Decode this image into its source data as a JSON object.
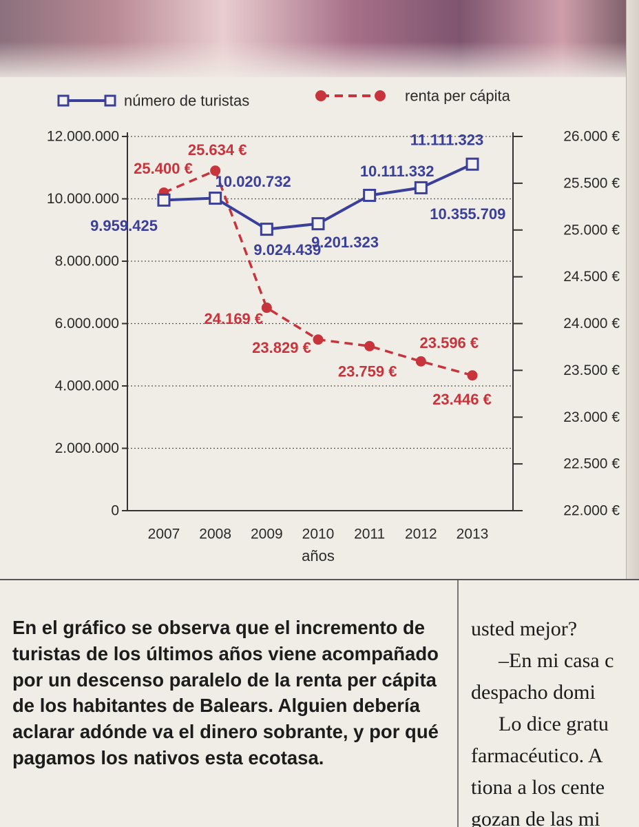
{
  "chart_data": {
    "type": "line",
    "categories": [
      "2007",
      "2008",
      "2009",
      "2010",
      "2011",
      "2012",
      "2013"
    ],
    "xlabel": "años",
    "legend_position": "top",
    "grid": "horizontal dotted",
    "axes": {
      "left": {
        "ylim": [
          0,
          12000000
        ],
        "ticks": [
          0,
          2000000,
          4000000,
          6000000,
          8000000,
          10000000,
          12000000
        ],
        "tick_labels": [
          "0",
          "2.000.000",
          "4.000.000",
          "6.000.000",
          "8.000.000",
          "10.000.000",
          "12.000.000"
        ]
      },
      "right": {
        "ylim": [
          22000,
          26000
        ],
        "ticks": [
          22000,
          22500,
          23000,
          23500,
          24000,
          24500,
          25000,
          25500,
          26000
        ],
        "tick_labels": [
          "22.000 €",
          "22.500 €",
          "23.000 €",
          "23.500 €",
          "24.000 €",
          "24.500 €",
          "25.000 €",
          "25.500 €",
          "26.000 €"
        ]
      }
    },
    "series": [
      {
        "name": "número de turistas",
        "axis": "left",
        "color": "#3a3f9a",
        "marker": "open-square",
        "values": [
          9959425,
          10020732,
          9024439,
          9201323,
          10111332,
          10355709,
          11111323
        ],
        "labels": [
          "9.959.425",
          "10.020.732",
          "9.024.439",
          "9.201.323",
          "10.111.332",
          "10.355.709",
          "11.111.323"
        ]
      },
      {
        "name": "renta per cápita",
        "axis": "right",
        "color": "#c8343c",
        "marker": "filled-circle",
        "line_style": "dashed",
        "values": [
          25400,
          25634,
          24169,
          23829,
          23759,
          23596,
          23446
        ],
        "labels": [
          "25.400 €",
          "25.634 €",
          "24.169 €",
          "23.829 €",
          "23.759 €",
          "23.596 €",
          "23.446 €"
        ]
      }
    ]
  },
  "caption": "En el gráfico se observa que el incremento de turistas de los últimos años viene acompañado por un descenso paralelo de la renta per cápita de los habitantes de Balears. Alguien debería aclarar adónde va el dinero sobrante, y por qué pagamos los nativos esta ecotasa.",
  "column_lines": [
    "usted mejor?",
    "–En mi casa c",
    "despacho domi",
    "Lo dice gratu",
    "farmacéutico. A",
    "tiona a los cente",
    "gozan de las mi"
  ]
}
